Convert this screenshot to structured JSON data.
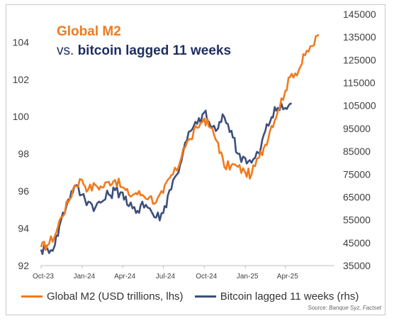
{
  "title": {
    "line1": "Global M2",
    "line2_prefix": "vs. ",
    "line2_bold": "bitcoin lagged 11 weeks"
  },
  "legend": {
    "m2": "Global M2 (USD trillions, lhs)",
    "btc": "Bitcoin lagged 11 weeks (rhs)"
  },
  "source": "Source: Banque Syz, Factset",
  "colors": {
    "m2": "#f07a1e",
    "btc": "#3d4f7c",
    "title_orange": "#f07a1e",
    "title_navy": "#1f3060"
  },
  "chart_data": {
    "type": "line",
    "x_ticks": [
      "Oct-23",
      "Jan-24",
      "Apr-24",
      "Jul-24",
      "Oct-24",
      "Jan-25",
      "Apr-25"
    ],
    "y_left": {
      "ticks": [
        92,
        94,
        96,
        98,
        100,
        102,
        104
      ],
      "range": [
        92,
        105.5
      ]
    },
    "y_right": {
      "ticks": [
        35000,
        45000,
        55000,
        65000,
        75000,
        85000,
        95000,
        105000,
        115000,
        125000,
        135000,
        145000
      ],
      "range": [
        35000,
        145000
      ]
    },
    "grid": false,
    "legend_position": "bottom",
    "series": [
      {
        "name": "Global M2 (USD trillions, lhs)",
        "axis": "left",
        "points": [
          [
            "2023-10-01",
            93.0
          ],
          [
            "2023-10-15",
            93.1
          ],
          [
            "2023-11-01",
            93.6
          ],
          [
            "2023-11-15",
            94.6
          ],
          [
            "2023-12-01",
            95.4
          ],
          [
            "2023-12-15",
            96.3
          ],
          [
            "2024-01-01",
            96.6
          ],
          [
            "2024-01-15",
            96.1
          ],
          [
            "2024-02-01",
            96.3
          ],
          [
            "2024-02-15",
            96.2
          ],
          [
            "2024-03-01",
            96.5
          ],
          [
            "2024-03-15",
            96.6
          ],
          [
            "2024-04-01",
            96.2
          ],
          [
            "2024-04-15",
            95.8
          ],
          [
            "2024-05-01",
            95.9
          ],
          [
            "2024-05-15",
            95.8
          ],
          [
            "2024-06-01",
            95.7
          ],
          [
            "2024-06-15",
            95.4
          ],
          [
            "2024-07-01",
            95.9
          ],
          [
            "2024-07-15",
            96.7
          ],
          [
            "2024-08-01",
            97.1
          ],
          [
            "2024-08-15",
            98.3
          ],
          [
            "2024-09-01",
            98.8
          ],
          [
            "2024-09-15",
            99.4
          ],
          [
            "2024-10-01",
            99.9
          ],
          [
            "2024-10-15",
            99.4
          ],
          [
            "2024-11-01",
            98.6
          ],
          [
            "2024-11-15",
            97.3
          ],
          [
            "2024-12-01",
            97.4
          ],
          [
            "2024-12-15",
            97.3
          ],
          [
            "2025-01-01",
            97.0
          ],
          [
            "2025-01-15",
            96.9
          ],
          [
            "2025-02-01",
            97.8
          ],
          [
            "2025-02-15",
            98.5
          ],
          [
            "2025-03-01",
            99.5
          ],
          [
            "2025-03-15",
            100.3
          ],
          [
            "2025-04-01",
            101.4
          ],
          [
            "2025-04-15",
            102.3
          ],
          [
            "2025-05-01",
            102.5
          ],
          [
            "2025-05-15",
            103.3
          ],
          [
            "2025-06-01",
            103.8
          ],
          [
            "2025-06-15",
            104.4
          ]
        ]
      },
      {
        "name": "Bitcoin lagged 11 weeks (rhs)",
        "axis": "right",
        "points": [
          [
            "2023-10-01",
            42000
          ],
          [
            "2023-10-15",
            42500
          ],
          [
            "2023-11-01",
            44000
          ],
          [
            "2023-11-15",
            55000
          ],
          [
            "2023-12-01",
            64000
          ],
          [
            "2023-12-15",
            70000
          ],
          [
            "2024-01-01",
            66000
          ],
          [
            "2024-01-15",
            63000
          ],
          [
            "2024-02-01",
            61000
          ],
          [
            "2024-02-15",
            63000
          ],
          [
            "2024-03-01",
            66000
          ],
          [
            "2024-03-15",
            68000
          ],
          [
            "2024-04-01",
            67000
          ],
          [
            "2024-04-15",
            61000
          ],
          [
            "2024-05-01",
            58000
          ],
          [
            "2024-05-15",
            63000
          ],
          [
            "2024-06-01",
            60000
          ],
          [
            "2024-06-15",
            56000
          ],
          [
            "2024-07-01",
            58000
          ],
          [
            "2024-07-15",
            68000
          ],
          [
            "2024-08-01",
            75000
          ],
          [
            "2024-08-15",
            85000
          ],
          [
            "2024-09-01",
            94000
          ],
          [
            "2024-09-15",
            97000
          ],
          [
            "2024-10-01",
            102000
          ],
          [
            "2024-10-15",
            96000
          ],
          [
            "2024-11-01",
            95000
          ],
          [
            "2024-11-15",
            100000
          ],
          [
            "2024-12-01",
            94000
          ],
          [
            "2024-12-15",
            84000
          ],
          [
            "2025-01-01",
            82000
          ],
          [
            "2025-01-15",
            80000
          ],
          [
            "2025-02-01",
            84000
          ],
          [
            "2025-02-15",
            94000
          ],
          [
            "2025-03-01",
            100000
          ],
          [
            "2025-03-15",
            104000
          ],
          [
            "2025-04-01",
            104000
          ],
          [
            "2025-04-15",
            106000
          ]
        ]
      }
    ]
  }
}
